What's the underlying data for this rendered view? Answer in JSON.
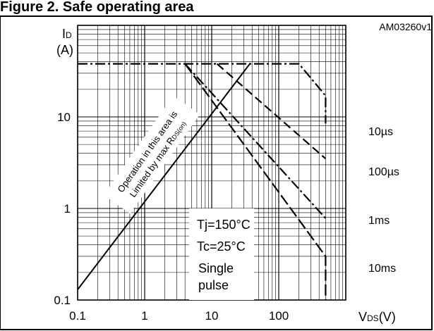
{
  "chart_data": {
    "type": "line",
    "title": "Figure 2. Safe operating area",
    "figure_id": "AM03260v1",
    "xlabel": "VDS(V)",
    "ylabel": "ID (A)",
    "x_scale": "log",
    "y_scale": "log",
    "xlim": [
      0.1,
      1000
    ],
    "ylim": [
      0.1,
      100
    ],
    "x_ticks": [
      {
        "value": 0.1,
        "label": "0.1"
      },
      {
        "value": 1,
        "label": "1"
      },
      {
        "value": 10,
        "label": "10"
      },
      {
        "value": 100,
        "label": "100"
      }
    ],
    "y_ticks": [
      {
        "value": 0.1,
        "label": "0.1"
      },
      {
        "value": 1,
        "label": "1"
      },
      {
        "value": 10,
        "label": "10"
      }
    ],
    "grid": true,
    "series": [
      {
        "name": "10µs",
        "style": "dash-dot",
        "points": [
          [
            0.1,
            38
          ],
          [
            40,
            38
          ],
          [
            200,
            38
          ],
          [
            500,
            17
          ],
          [
            500,
            8.5
          ]
        ]
      },
      {
        "name": "100µs",
        "style": "dashed",
        "points": [
          [
            12,
            38
          ],
          [
            500,
            3.5
          ]
        ]
      },
      {
        "name": "1ms",
        "style": "dash-dot",
        "points": [
          [
            4,
            38
          ],
          [
            500,
            0.78
          ]
        ]
      },
      {
        "name": "10ms",
        "style": "long-dash",
        "points": [
          [
            4,
            38
          ],
          [
            500,
            0.3
          ],
          [
            500,
            0.1
          ]
        ]
      }
    ],
    "rds_limit_line": {
      "points": [
        [
          0.1,
          0.13
        ],
        [
          37,
          38
        ]
      ]
    },
    "annotations": {
      "rds_line": [
        "Operation in this area is",
        "Limited by max R",
        "DS(on)"
      ],
      "conditions": [
        "Tj=150°C",
        "Tc=25°C",
        "Single",
        "pulse"
      ]
    }
  }
}
